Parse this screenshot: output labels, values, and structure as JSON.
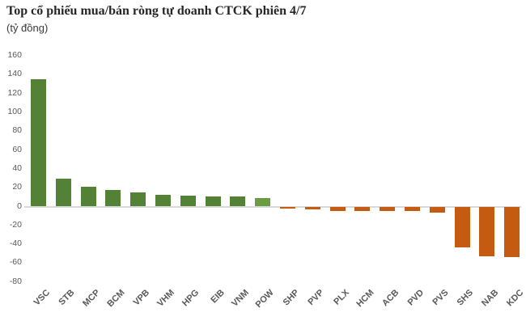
{
  "page": {
    "background": "#ffffff"
  },
  "chart_data": {
    "type": "bar",
    "title": "Top cổ phiếu mua/bán ròng tự doanh CTCK phiên 4/7",
    "subtitle": "(tỷ đồng)",
    "unit_label": "tỷ đồng",
    "categories": [
      "VSC",
      "STB",
      "MCP",
      "BCM",
      "VPB",
      "VHM",
      "HPG",
      "EIB",
      "VNM",
      "POW",
      "SHP",
      "PVP",
      "PLX",
      "HCM",
      "ACB",
      "PVD",
      "PVS",
      "SHS",
      "NAB",
      "KDC"
    ],
    "values": [
      135,
      29,
      21,
      17,
      15,
      12,
      11,
      10,
      10,
      9,
      -2,
      -3,
      -4,
      -4,
      -4,
      -4,
      -6,
      -43,
      -52,
      -53
    ],
    "bar_colors": [
      "#538135",
      "#538135",
      "#538135",
      "#538135",
      "#538135",
      "#538135",
      "#538135",
      "#538135",
      "#538135",
      "#6A9C41",
      "#C55A11",
      "#C55A11",
      "#C55A11",
      "#C55A11",
      "#C55A11",
      "#C55A11",
      "#C55A11",
      "#C55A11",
      "#C55A11",
      "#C55A11"
    ],
    "positive_color": "#538135",
    "negative_color": "#C55A11",
    "ylim": [
      -80,
      160
    ],
    "y_ticks": [
      160,
      140,
      120,
      100,
      80,
      60,
      40,
      20,
      0,
      -20,
      -40,
      -60,
      -80
    ],
    "grid": false,
    "legend": "none",
    "axis_line_color": "#d9d9d9",
    "tick_label_color": "#595959",
    "x_label_rotation_deg": -45
  }
}
